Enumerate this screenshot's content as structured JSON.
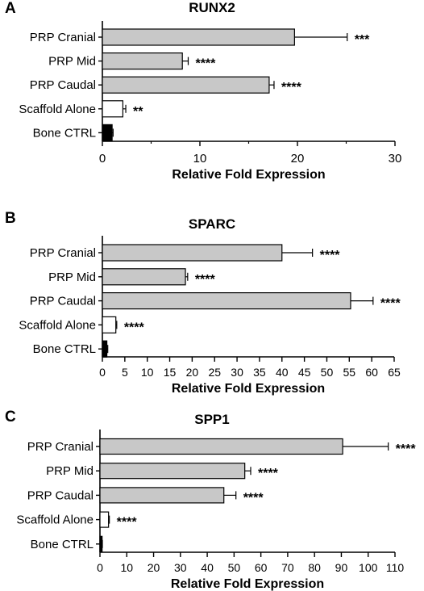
{
  "chart_data": [
    {
      "panel_label": "A",
      "type": "bar",
      "orientation": "horizontal",
      "title": "RUNX2",
      "xlabel": "Relative Fold Expression",
      "ylabel": "",
      "categories": [
        "PRP Cranial",
        "PRP Mid",
        "PRP Caudal",
        "Scaffold Alone",
        "Bone CTRL"
      ],
      "values": [
        19.7,
        8.2,
        17.1,
        2.1,
        1.0
      ],
      "errors": [
        5.4,
        0.6,
        0.5,
        0.3,
        0.1
      ],
      "significance": [
        "***",
        "****",
        "****",
        "**",
        ""
      ],
      "fill_colors": [
        "#c8c8c8",
        "#c8c8c8",
        "#c8c8c8",
        "#ffffff",
        "#000000"
      ],
      "xlim": [
        0,
        30
      ],
      "xticks": [
        0,
        10,
        20,
        30
      ],
      "minor_ticks": true
    },
    {
      "panel_label": "B",
      "type": "bar",
      "orientation": "horizontal",
      "title": "SPARC",
      "xlabel": "Relative Fold Expression",
      "ylabel": "",
      "categories": [
        "PRP Cranial",
        "PRP Mid",
        "PRP Caudal",
        "Scaffold Alone",
        "Bone CTRL"
      ],
      "values": [
        40.0,
        18.5,
        55.3,
        3.0,
        1.0
      ],
      "errors": [
        6.8,
        0.5,
        5.0,
        0.2,
        0.2
      ],
      "significance": [
        "****",
        "****",
        "****",
        "****",
        ""
      ],
      "fill_colors": [
        "#c8c8c8",
        "#c8c8c8",
        "#c8c8c8",
        "#ffffff",
        "#000000"
      ],
      "xlim": [
        0,
        65
      ],
      "xticks": [
        0,
        5,
        10,
        15,
        20,
        25,
        30,
        35,
        40,
        45,
        50,
        55,
        60,
        65
      ],
      "minor_ticks": false
    },
    {
      "panel_label": "C",
      "type": "bar",
      "orientation": "horizontal",
      "title": "SPP1",
      "xlabel": "Relative Fold Expression",
      "ylabel": "",
      "categories": [
        "PRP Cranial",
        "PRP Mid",
        "PRP Caudal",
        "Scaffold Alone",
        "Bone CTRL"
      ],
      "values": [
        90.5,
        54.0,
        46.2,
        3.2,
        0.8
      ],
      "errors": [
        17.0,
        2.2,
        4.5,
        0.3,
        0.1
      ],
      "significance": [
        "****",
        "****",
        "****",
        "****",
        ""
      ],
      "fill_colors": [
        "#c8c8c8",
        "#c8c8c8",
        "#c8c8c8",
        "#ffffff",
        "#000000"
      ],
      "xlim": [
        0,
        110
      ],
      "xticks": [
        0,
        10,
        20,
        30,
        40,
        50,
        60,
        70,
        80,
        90,
        100,
        110
      ],
      "minor_ticks": false
    }
  ]
}
